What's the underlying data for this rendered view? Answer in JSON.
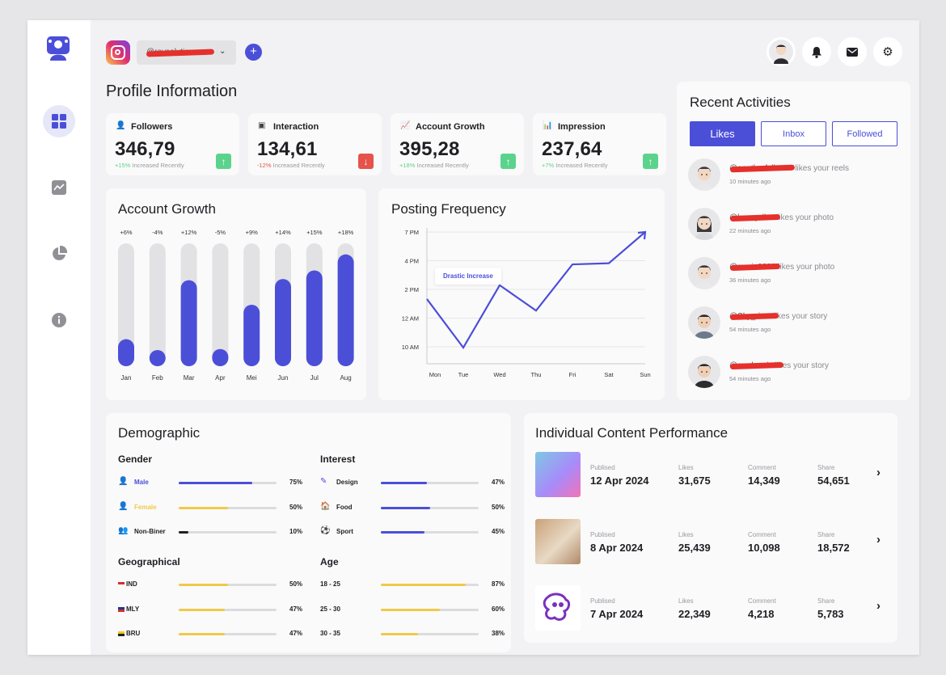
{
  "header": {
    "account_name": "@raysolution",
    "page_title": "Profile Information"
  },
  "stats": [
    {
      "label": "Followers",
      "value": "346,79",
      "change": "+15%",
      "note": "Increased Recently",
      "trend": "up"
    },
    {
      "label": "Interaction",
      "value": "134,61",
      "change": "-12%",
      "note": "Increased Recently",
      "trend": "down"
    },
    {
      "label": "Account Growth",
      "value": "395,28",
      "change": "+18%",
      "note": "Increased Recently",
      "trend": "up"
    },
    {
      "label": "Impression",
      "value": "237,64",
      "change": "+7%",
      "note": "Increased Recently",
      "trend": "up"
    }
  ],
  "colors": {
    "accent": "#4b4fd8",
    "up": "#5bd38d",
    "down": "#e5534b",
    "gold": "#f0c94a"
  },
  "growth": {
    "title": "Account Growth",
    "chart_data": {
      "type": "bar",
      "categories": [
        "Jan",
        "Feb",
        "Mar",
        "Apr",
        "Mei",
        "Jun",
        "Jul",
        "Aug"
      ],
      "values": [
        22,
        12,
        70,
        14,
        50,
        71,
        78,
        91
      ],
      "labels": [
        "+6%",
        "-4%",
        "+12%",
        "-5%",
        "+9%",
        "+14%",
        "+15%",
        "+18%"
      ],
      "ylim": [
        0,
        100
      ]
    }
  },
  "frequency": {
    "title": "Posting Frequency",
    "annotation": "Drastic Increase",
    "chart_data": {
      "type": "line",
      "x": [
        "Mon",
        "Tue",
        "Wed",
        "Thu",
        "Fri",
        "Sat",
        "Sun"
      ],
      "yticks": [
        "7 PM",
        "4 PM",
        "2 PM",
        "12 AM",
        "10 AM"
      ],
      "values": [
        2.1,
        0.0,
        2.7,
        1.6,
        3.6,
        3.65,
        5.0
      ],
      "ylim": [
        0,
        5
      ]
    }
  },
  "activities": {
    "title": "Recent Activities",
    "tabs": [
      "Likes",
      "Inbox",
      "Followed"
    ],
    "items": [
      {
        "user": "@anotherfollower",
        "action": "likes your reels",
        "time": "10 minutes ago"
      },
      {
        "user": "@kanaprilau",
        "action": "likes your photo",
        "time": "22 minutes ago"
      },
      {
        "user": "@maria0398",
        "action": "likes your photo",
        "time": "36 minutes ago"
      },
      {
        "user": "@Sky_river",
        "action": "likes your story",
        "time": "54 minutes ago"
      },
      {
        "user": "@mr.dennis",
        "action": "likes your story",
        "time": "54 minutes ago"
      }
    ]
  },
  "demographic": {
    "title": "Demographic",
    "gender": {
      "title": "Gender",
      "rows": [
        {
          "label": "Male",
          "pct": "75%",
          "value": 75,
          "color": "#4b4fd8"
        },
        {
          "label": "Female",
          "pct": "50%",
          "value": 50,
          "color": "#f0c94a"
        },
        {
          "label": "Non-Biner",
          "pct": "10%",
          "value": 10,
          "color": "#1f1f24"
        }
      ]
    },
    "interest": {
      "title": "Interest",
      "rows": [
        {
          "label": "Design",
          "pct": "47%",
          "value": 47
        },
        {
          "label": "Food",
          "pct": "50%",
          "value": 50
        },
        {
          "label": "Sport",
          "pct": "45%",
          "value": 45
        }
      ]
    },
    "geo": {
      "title": "Geographical",
      "rows": [
        {
          "label": "IND",
          "pct": "50%",
          "value": 50
        },
        {
          "label": "MLY",
          "pct": "47%",
          "value": 47
        },
        {
          "label": "BRU",
          "pct": "47%",
          "value": 47
        }
      ]
    },
    "age": {
      "title": "Age",
      "rows": [
        {
          "label": "18 - 25",
          "pct": "87%",
          "value": 87
        },
        {
          "label": "25 - 30",
          "pct": "60%",
          "value": 60
        },
        {
          "label": "30 - 35",
          "pct": "38%",
          "value": 38
        }
      ]
    }
  },
  "performance": {
    "title": "Individual Content Performance",
    "label_published": "Publised",
    "label_likes": "Likes",
    "label_comment": "Comment",
    "label_share": "Share",
    "rows": [
      {
        "date": "12 Apr 2024",
        "likes": "31,675",
        "comment": "14,349",
        "share": "54,651"
      },
      {
        "date": "8 Apr 2024",
        "likes": "25,439",
        "comment": "10,098",
        "share": "18,572"
      },
      {
        "date": "7 Apr 2024",
        "likes": "22,349",
        "comment": "4,218",
        "share": "5,783"
      }
    ]
  }
}
